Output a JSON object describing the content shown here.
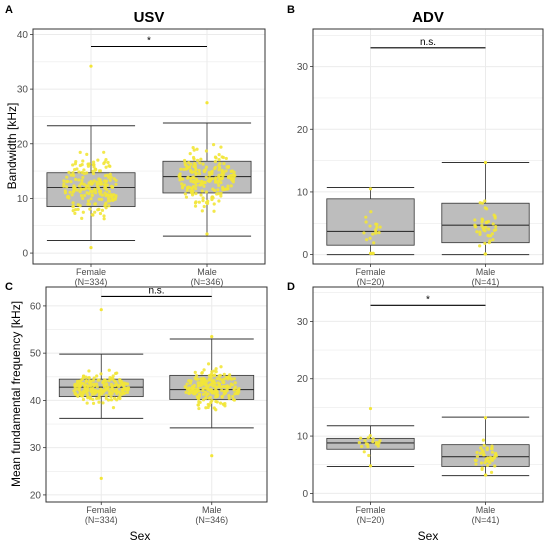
{
  "figure": {
    "x_axis_title": "Sex"
  },
  "chart_data": [
    {
      "panel": "A",
      "type": "box",
      "title": "USV",
      "ylabel": "Bandwidth [kHz]",
      "ylim": [
        -2,
        41
      ],
      "yticks": [
        0,
        10,
        20,
        30,
        40
      ],
      "categories": [
        "Female\n(N=334)",
        "Male\n(N=346)"
      ],
      "boxes": [
        {
          "whisker_low": 2.3,
          "q1": 8.5,
          "median": 12.0,
          "q3": 14.7,
          "whisker_high": 23.3,
          "points": {
            "min": 1.0,
            "max": 34.2,
            "center": 12.2,
            "spread": 4.2,
            "n": 190
          }
        },
        {
          "whisker_low": 3.1,
          "q1": 11.0,
          "median": 14.0,
          "q3": 16.8,
          "whisker_high": 23.8,
          "points": {
            "min": 3.5,
            "max": 27.5,
            "center": 14.0,
            "spread": 4.2,
            "n": 200
          }
        }
      ],
      "significance": "*",
      "sig_y": 37.8,
      "grid": true,
      "grid_minor": [
        5,
        15,
        25,
        35
      ]
    },
    {
      "panel": "B",
      "type": "box",
      "title": "ADV",
      "ylabel": "",
      "ylim": [
        -1.5,
        36
      ],
      "yticks": [
        0,
        10,
        20,
        30
      ],
      "categories": [
        "Female\n(N=20)",
        "Male\n(N=41)"
      ],
      "boxes": [
        {
          "whisker_low": 0.0,
          "q1": 1.5,
          "median": 3.7,
          "q3": 8.9,
          "whisker_high": 10.7,
          "points": {
            "min": 0.2,
            "max": 10.5,
            "center": 3.5,
            "spread": 3.0,
            "n": 20
          }
        },
        {
          "whisker_low": 0.0,
          "q1": 1.9,
          "median": 4.7,
          "q3": 8.2,
          "whisker_high": 14.7,
          "points": {
            "min": 0.1,
            "max": 14.7,
            "center": 4.5,
            "spread": 3.5,
            "n": 41
          }
        }
      ],
      "significance": "n.s.",
      "sig_y": 33.0,
      "grid": true,
      "grid_minor": [
        5,
        15,
        25,
        35
      ]
    },
    {
      "panel": "C",
      "type": "box",
      "title": "",
      "ylabel": "Mean fundamental frequency [kHz]",
      "ylim": [
        18.5,
        64
      ],
      "yticks": [
        20,
        30,
        40,
        50,
        60
      ],
      "categories": [
        "Female\n(N=334)",
        "Male\n(N=346)"
      ],
      "boxes": [
        {
          "whisker_low": 36.2,
          "q1": 40.8,
          "median": 42.8,
          "q3": 44.5,
          "whisker_high": 49.8,
          "points": {
            "min": 23.5,
            "max": 59.2,
            "center": 42.6,
            "spread": 2.8,
            "n": 190
          }
        },
        {
          "whisker_low": 34.2,
          "q1": 40.2,
          "median": 42.3,
          "q3": 45.3,
          "whisker_high": 53.0,
          "points": {
            "min": 28.3,
            "max": 53.5,
            "center": 42.5,
            "spread": 3.3,
            "n": 200
          }
        }
      ],
      "significance": "n.s.",
      "sig_y": 62.0,
      "grid": true,
      "grid_minor": [
        25,
        35,
        45,
        55
      ]
    },
    {
      "panel": "D",
      "type": "box",
      "title": "",
      "ylabel": "",
      "ylim": [
        -1.5,
        36
      ],
      "yticks": [
        0,
        10,
        20,
        30
      ],
      "categories": [
        "Female\n(N=20)",
        "Male\n(N=41)"
      ],
      "boxes": [
        {
          "whisker_low": 4.7,
          "q1": 7.7,
          "median": 8.8,
          "q3": 9.6,
          "whisker_high": 11.8,
          "points": {
            "min": 4.8,
            "max": 14.8,
            "center": 8.8,
            "spread": 1.5,
            "n": 20
          }
        },
        {
          "whisker_low": 3.1,
          "q1": 4.7,
          "median": 6.4,
          "q3": 8.5,
          "whisker_high": 13.3,
          "points": {
            "min": 3.2,
            "max": 13.2,
            "center": 6.0,
            "spread": 2.3,
            "n": 41
          }
        }
      ],
      "significance": "*",
      "sig_y": 32.8,
      "grid": true,
      "grid_minor": [
        5,
        15,
        25,
        35
      ]
    }
  ],
  "colors": {
    "box_fill": "#bdbdbd",
    "box_line": "#333333",
    "points": "#f2e539",
    "grid": "#ebebeb",
    "panel_border": "#333333",
    "bracket": "#000000"
  }
}
